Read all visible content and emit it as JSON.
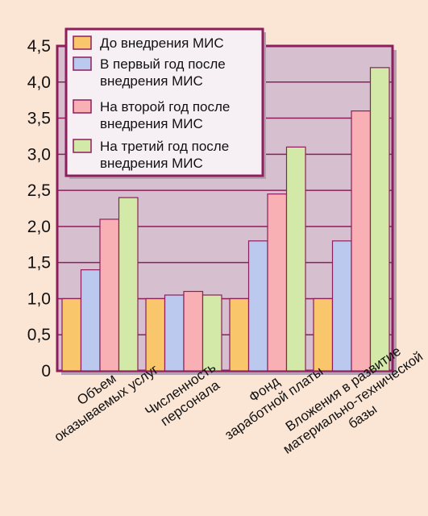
{
  "colors": {
    "page_background": "#fbe6d6",
    "plot_background": "#d6bfcf",
    "frame": "#8e1e5c",
    "grid": "#8e1e5c",
    "bar_outline": "#8e1e5c"
  },
  "chart_data": {
    "type": "bar",
    "title": "",
    "xlabel": "",
    "ylabel": "",
    "ylim": [
      0,
      4.5
    ],
    "yticks": [
      "0",
      "0,5",
      "1,0",
      "1,5",
      "2,0",
      "2,5",
      "3,0",
      "3,5",
      "4,0",
      "4,5"
    ],
    "grid": true,
    "legend_position": "top-right",
    "categories": [
      [
        "Объем",
        "оказываемых услуг"
      ],
      [
        "Численность",
        "персонала"
      ],
      [
        "Фонд",
        "заработной платы"
      ],
      [
        "Вложения в развитие",
        "материально-технической",
        "базы"
      ]
    ],
    "series": [
      {
        "name": [
          "До внедрения МИС"
        ],
        "color": "#f9c66c",
        "values": [
          1.0,
          1.0,
          1.0,
          1.0
        ]
      },
      {
        "name": [
          "В первый год после",
          "внедрения МИС"
        ],
        "color": "#bcc9ee",
        "values": [
          1.4,
          1.05,
          1.8,
          1.8
        ]
      },
      {
        "name": [
          "На второй год после",
          "внедрения МИС"
        ],
        "color": "#f8b0b5",
        "values": [
          2.1,
          1.1,
          2.45,
          3.6
        ]
      },
      {
        "name": [
          "На третий год после",
          "внедрения МИС"
        ],
        "color": "#d3e9a8",
        "values": [
          2.4,
          1.05,
          3.1,
          4.2
        ]
      }
    ]
  }
}
